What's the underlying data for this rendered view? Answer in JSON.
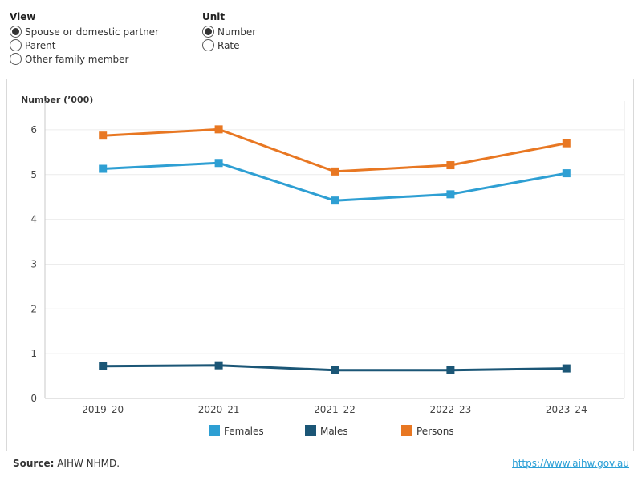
{
  "controls": {
    "view": {
      "title": "View",
      "options": [
        "Spouse or domestic partner",
        "Parent",
        "Other family member"
      ],
      "selected_index": 0
    },
    "unit": {
      "title": "Unit",
      "options": [
        "Number",
        "Rate"
      ],
      "selected_index": 0
    }
  },
  "footer": {
    "source_label": "Source:",
    "source_text": " AIHW NHMD.",
    "link_text": "https://www.aihw.gov.au"
  },
  "chart_data": {
    "type": "line",
    "title": "",
    "ylabel": "Number (’000)",
    "xlabel": "",
    "categories": [
      "2019–20",
      "2020–21",
      "2021–22",
      "2022–23",
      "2023–24"
    ],
    "ylim": [
      0,
      6.5
    ],
    "yticks": [
      0,
      1,
      2,
      3,
      4,
      5,
      6
    ],
    "grid": true,
    "legend_position": "bottom",
    "series": [
      {
        "name": "Females",
        "color": "#2e9fd3",
        "values": [
          5.13,
          5.26,
          4.42,
          4.56,
          5.03
        ]
      },
      {
        "name": "Males",
        "color": "#1b5676",
        "values": [
          0.72,
          0.74,
          0.63,
          0.63,
          0.67
        ]
      },
      {
        "name": "Persons",
        "color": "#e87722",
        "values": [
          5.87,
          6.01,
          5.07,
          5.21,
          5.7
        ]
      }
    ]
  }
}
